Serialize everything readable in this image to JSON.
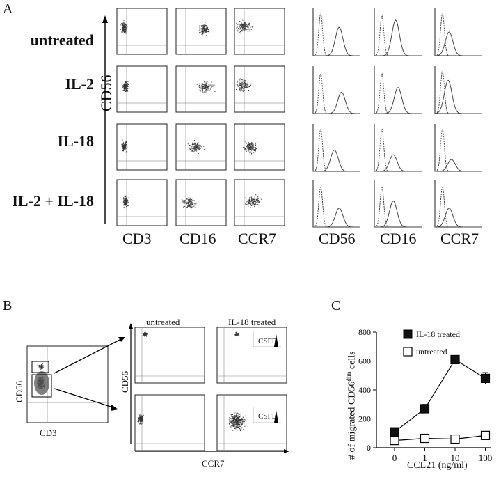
{
  "panel_a": {
    "letter": "A",
    "conditions": [
      "untreated",
      "IL-2",
      "IL-18",
      "IL-2 + IL-18"
    ],
    "y_axis_label": "CD56",
    "dotplot_x_labels": [
      "CD3",
      "CD16",
      "CCR7"
    ],
    "histogram_x_labels": [
      "CD56",
      "CD16",
      "CCR7"
    ]
  },
  "panel_b": {
    "letter": "B",
    "gate_plot": {
      "y_label": "CD56",
      "x_label": "CD3"
    },
    "column_titles": [
      "untreated",
      "IL-18 treated"
    ],
    "inset_label": "CSFE",
    "y_label": "CD56",
    "x_label": "CCR7"
  },
  "panel_c": {
    "letter": "C",
    "ylabel_main": "# of migrated CD56",
    "ylabel_sup": "dim",
    "ylabel_tail": " cells",
    "xlabel": "CCL21 (ng/ml)",
    "chart_data": {
      "type": "line",
      "categories": [
        "0",
        "1",
        "10",
        "100"
      ],
      "series": [
        {
          "name": "IL-18 treated",
          "values": [
            110,
            270,
            610,
            480
          ],
          "errors": [
            10,
            30,
            15,
            40
          ],
          "marker": "filled-square"
        },
        {
          "name": "untreated",
          "values": [
            50,
            65,
            60,
            85
          ],
          "errors": [
            5,
            8,
            5,
            10
          ],
          "marker": "open-square"
        }
      ],
      "ylim": [
        0,
        800
      ],
      "yticks": [
        "0",
        "200",
        "400",
        "600",
        "800"
      ],
      "legend_position": "top-right"
    }
  }
}
